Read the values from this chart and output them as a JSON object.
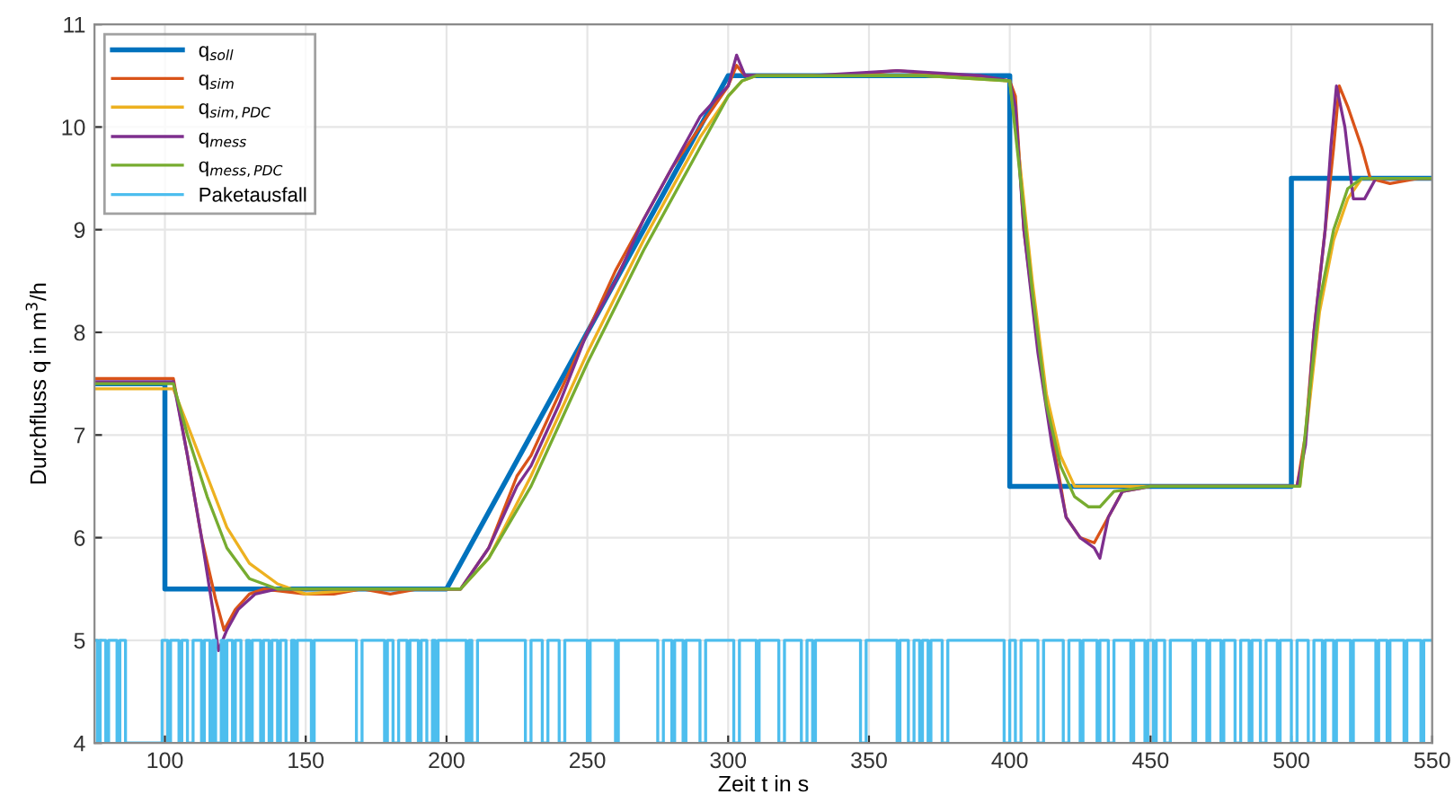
{
  "chart_data": {
    "type": "line",
    "xlabel": "Zeit t in s",
    "ylabel": "Durchfluss q in m$^{3}$/h",
    "xlim": [
      75,
      550
    ],
    "xticks": [
      100,
      150,
      200,
      250,
      300,
      350,
      400,
      450,
      500,
      550
    ],
    "ylim": [
      4,
      11
    ],
    "yticks": [
      4,
      5,
      6,
      7,
      8,
      9,
      10,
      11
    ],
    "grid": true,
    "legend": "top left",
    "series": [
      {
        "name": "q$_{soll}$",
        "color": "#0072bd",
        "x": [
          75,
          100,
          100,
          200,
          300,
          400,
          400,
          500,
          500,
          550
        ],
        "values": [
          7.5,
          7.5,
          5.5,
          5.5,
          10.5,
          10.5,
          6.5,
          6.5,
          9.5,
          9.5
        ]
      },
      {
        "name": "q$_{sim}$",
        "color": "#d95319",
        "x": [
          75,
          103,
          108,
          113,
          118,
          121,
          125,
          130,
          135,
          150,
          160,
          170,
          180,
          190,
          200,
          205,
          215,
          225,
          230,
          240,
          250,
          260,
          270,
          280,
          290,
          300,
          303,
          306,
          320,
          340,
          360,
          380,
          400,
          402,
          405,
          410,
          415,
          420,
          425,
          430,
          435,
          440,
          450,
          470,
          490,
          502,
          505,
          508,
          512,
          515,
          517,
          520,
          525,
          528,
          535,
          545,
          550
        ],
        "values": [
          7.55,
          7.55,
          6.8,
          6.0,
          5.4,
          5.1,
          5.3,
          5.45,
          5.5,
          5.45,
          5.45,
          5.5,
          5.45,
          5.5,
          5.5,
          5.5,
          5.9,
          6.6,
          6.8,
          7.4,
          8.0,
          8.6,
          9.1,
          9.6,
          10.0,
          10.4,
          10.6,
          10.5,
          10.5,
          10.5,
          10.55,
          10.5,
          10.45,
          10.3,
          9.0,
          7.9,
          7.0,
          6.2,
          6.0,
          5.95,
          6.2,
          6.45,
          6.5,
          6.5,
          6.5,
          6.5,
          7.0,
          8.0,
          9.0,
          9.8,
          10.4,
          10.2,
          9.8,
          9.5,
          9.45,
          9.5,
          9.5
        ]
      },
      {
        "name": "q$_{sim,PDC}$",
        "color": "#edb120",
        "x": [
          75,
          103,
          108,
          115,
          122,
          130,
          140,
          150,
          170,
          190,
          205,
          215,
          230,
          250,
          270,
          290,
          300,
          305,
          310,
          340,
          370,
          400,
          403,
          408,
          413,
          418,
          423,
          430,
          450,
          480,
          503,
          506,
          510,
          515,
          520,
          525,
          530,
          550
        ],
        "values": [
          7.45,
          7.45,
          7.1,
          6.6,
          6.1,
          5.75,
          5.55,
          5.45,
          5.5,
          5.5,
          5.5,
          5.8,
          6.6,
          7.8,
          8.9,
          9.9,
          10.3,
          10.45,
          10.5,
          10.5,
          10.5,
          10.45,
          9.8,
          8.5,
          7.4,
          6.8,
          6.5,
          6.5,
          6.5,
          6.5,
          6.5,
          7.2,
          8.2,
          8.9,
          9.3,
          9.5,
          9.5,
          9.5
        ]
      },
      {
        "name": "q$_{mess}$",
        "color": "#7e2f8e",
        "x": [
          75,
          103,
          108,
          113,
          117,
          119,
          122,
          126,
          132,
          140,
          160,
          180,
          200,
          205,
          215,
          225,
          230,
          240,
          250,
          260,
          270,
          280,
          290,
          300,
          303,
          306,
          330,
          360,
          390,
          400,
          402,
          405,
          410,
          415,
          420,
          425,
          430,
          432,
          435,
          440,
          450,
          480,
          502,
          505,
          508,
          512,
          514,
          516,
          519,
          522,
          526,
          530,
          550
        ],
        "values": [
          7.52,
          7.52,
          6.8,
          6.0,
          5.3,
          4.9,
          5.1,
          5.3,
          5.45,
          5.5,
          5.5,
          5.5,
          5.5,
          5.5,
          5.9,
          6.5,
          6.7,
          7.3,
          8.0,
          8.5,
          9.1,
          9.6,
          10.1,
          10.4,
          10.7,
          10.5,
          10.5,
          10.55,
          10.5,
          10.45,
          10.2,
          9.0,
          7.8,
          6.9,
          6.2,
          6.0,
          5.9,
          5.8,
          6.2,
          6.45,
          6.5,
          6.5,
          6.5,
          6.9,
          8.0,
          9.0,
          9.8,
          10.4,
          10.0,
          9.3,
          9.3,
          9.5,
          9.5
        ]
      },
      {
        "name": "q$_{mess,PDC}$",
        "color": "#77ac30",
        "x": [
          75,
          103,
          108,
          115,
          122,
          130,
          140,
          150,
          170,
          190,
          205,
          215,
          230,
          250,
          270,
          290,
          300,
          305,
          310,
          340,
          370,
          400,
          403,
          408,
          413,
          418,
          423,
          428,
          432,
          437,
          450,
          480,
          503,
          506,
          510,
          515,
          520,
          525,
          530,
          550
        ],
        "values": [
          7.5,
          7.5,
          7.0,
          6.4,
          5.9,
          5.6,
          5.5,
          5.5,
          5.5,
          5.5,
          5.5,
          5.8,
          6.5,
          7.7,
          8.8,
          9.8,
          10.3,
          10.45,
          10.5,
          10.5,
          10.5,
          10.45,
          9.7,
          8.4,
          7.3,
          6.7,
          6.4,
          6.3,
          6.3,
          6.45,
          6.5,
          6.5,
          6.5,
          7.3,
          8.3,
          9.0,
          9.4,
          9.5,
          9.5,
          9.5
        ]
      },
      {
        "name": "Paketausfall",
        "color": "#4dbeee",
        "type": "step",
        "x": [
          75,
          76,
          77,
          79,
          80,
          83,
          84,
          86,
          99,
          101,
          102,
          105,
          106,
          108,
          110,
          113,
          114,
          116,
          117,
          118,
          120,
          121,
          122,
          124,
          125,
          127,
          129,
          130,
          131,
          134,
          135,
          137,
          138,
          140,
          141,
          143,
          145,
          146,
          147,
          152,
          153,
          168,
          170,
          178,
          179,
          181,
          183,
          186,
          187,
          190,
          191,
          193,
          195,
          196,
          197,
          207,
          208,
          209,
          211,
          228,
          230,
          234,
          236,
          240,
          242,
          250,
          251,
          260,
          261,
          275,
          277,
          280,
          281,
          284,
          285,
          290,
          292,
          302,
          304,
          310,
          311,
          318,
          320,
          326,
          328,
          330,
          331,
          347,
          349,
          360,
          361,
          364,
          366,
          368,
          369,
          371,
          372,
          376,
          378,
          398,
          400,
          402,
          404,
          410,
          412,
          419,
          421,
          425,
          426,
          431,
          432,
          435,
          437,
          443,
          444,
          448,
          449,
          451,
          452,
          455,
          457,
          465,
          466,
          470,
          471,
          475,
          476,
          480,
          482,
          485,
          486,
          489,
          491,
          495,
          496,
          500,
          502,
          506,
          508,
          511,
          512,
          515,
          516,
          521,
          522,
          530,
          531,
          534,
          535,
          540,
          541,
          546,
          547,
          550
        ],
        "values": [
          5,
          4,
          5,
          4,
          5,
          4,
          5,
          4,
          5,
          4,
          5,
          4,
          5,
          4,
          5,
          4,
          5,
          4,
          5,
          4,
          5,
          4,
          5,
          4,
          5,
          4,
          5,
          4,
          5,
          4,
          5,
          4,
          5,
          4,
          5,
          4,
          5,
          4,
          5,
          4,
          5,
          4,
          5,
          4,
          5,
          4,
          5,
          4,
          5,
          4,
          5,
          4,
          5,
          4,
          5,
          4,
          5,
          4,
          5,
          4,
          5,
          4,
          5,
          4,
          5,
          4,
          5,
          4,
          5,
          4,
          5,
          4,
          5,
          4,
          5,
          4,
          5,
          4,
          5,
          4,
          5,
          4,
          5,
          4,
          5,
          4,
          5,
          4,
          5,
          4,
          5,
          4,
          5,
          4,
          5,
          4,
          5,
          4,
          5,
          4,
          5,
          4,
          5,
          4,
          5,
          4,
          5,
          4,
          5,
          4,
          5,
          4,
          5,
          4,
          5,
          4,
          5,
          4,
          5,
          4,
          5,
          4,
          5,
          4,
          5,
          4,
          5,
          4,
          5,
          4,
          5,
          4,
          5,
          4,
          5,
          4,
          5,
          4,
          5,
          4,
          5,
          4,
          5,
          4,
          5,
          4,
          5,
          4,
          5,
          4,
          5,
          4,
          5,
          5
        ]
      }
    ]
  }
}
